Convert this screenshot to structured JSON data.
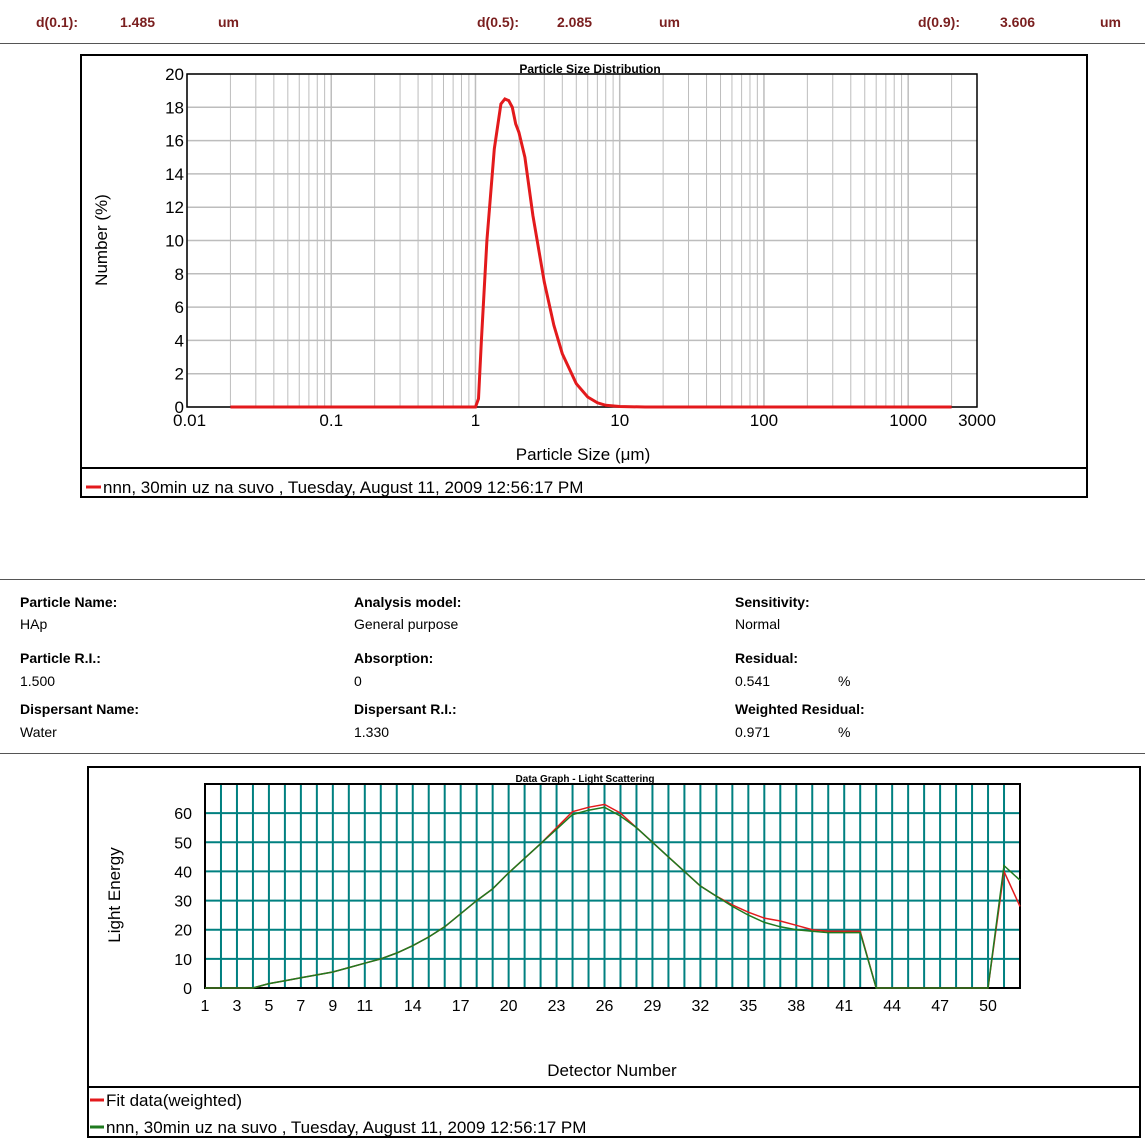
{
  "header": {
    "d10_label": "d(0.1):",
    "d10_value": "1.485",
    "d10_unit": "um",
    "d50_label": "d(0.5):",
    "d50_value": "2.085",
    "d50_unit": "um",
    "d90_label": "d(0.9):",
    "d90_value": "3.606",
    "d90_unit": "um"
  },
  "info": {
    "particle_name_label": "Particle Name:",
    "particle_name": "HAp",
    "analysis_model_label": "Analysis model:",
    "analysis_model": "General purpose",
    "sensitivity_label": "Sensitivity:",
    "sensitivity": "Normal",
    "particle_ri_label": "Particle R.I.:",
    "particle_ri": "1.500",
    "absorption_label": "Absorption:",
    "absorption": "0",
    "residual_label": "Residual:",
    "residual": "0.541",
    "residual_unit": "%",
    "dispersant_name_label": "Dispersant Name:",
    "dispersant_name": "Water",
    "dispersant_ri_label": "Dispersant R.I.:",
    "dispersant_ri": "1.330",
    "weighted_residual_label": "Weighted Residual:",
    "weighted_residual": "0.971",
    "weighted_residual_unit": "%"
  },
  "colors": {
    "red": "#e31a1c",
    "green": "#1f7a1f",
    "teal": "#008080",
    "grid_gray": "#bdbdbd",
    "header_text": "#7a1f1f"
  },
  "chart_data": [
    {
      "type": "line",
      "title": "Particle Size Distribution",
      "xlabel": "Particle Size (μm)",
      "ylabel": "Number (%)",
      "x_scale": "log",
      "xlim": [
        0.01,
        3000
      ],
      "ylim": [
        0,
        20
      ],
      "x_tick_labels": [
        "0.01",
        "0.1",
        "1",
        "10",
        "100",
        "1000",
        "3000"
      ],
      "x_ticks": [
        0.01,
        0.1,
        1,
        10,
        100,
        1000,
        3000
      ],
      "y_ticks": [
        0,
        2,
        4,
        6,
        8,
        10,
        12,
        14,
        16,
        18,
        20
      ],
      "grid": true,
      "legend": "bottom",
      "series": [
        {
          "name": "nnn, 30min uz na suvo , Tuesday, August 11, 2009 12:56:17 PM",
          "color": "#e31a1c",
          "x": [
            0.02,
            0.05,
            0.2,
            0.5,
            1.0,
            1.05,
            1.1,
            1.2,
            1.35,
            1.5,
            1.6,
            1.7,
            1.8,
            1.9,
            2.0,
            2.2,
            2.5,
            3.0,
            3.5,
            4.0,
            5.0,
            6.0,
            7.0,
            8.0,
            10.0,
            15.0,
            30.0,
            100.0,
            1000.0,
            2000.0
          ],
          "y": [
            0,
            0,
            0,
            0,
            0,
            0.5,
            4.0,
            10.0,
            15.5,
            18.2,
            18.5,
            18.4,
            18.0,
            17.0,
            16.5,
            15.0,
            11.5,
            7.5,
            4.9,
            3.2,
            1.4,
            0.6,
            0.25,
            0.1,
            0.03,
            0,
            0,
            0,
            0,
            0
          ]
        }
      ]
    },
    {
      "type": "line",
      "title": "Data Graph - Light Scattering",
      "xlabel": "Detector Number",
      "ylabel": "Light Energy",
      "xlim": [
        1,
        52
      ],
      "ylim": [
        0,
        70
      ],
      "x_tick_labels": [
        "1",
        "3",
        "5",
        "7",
        "9",
        "11",
        "14",
        "17",
        "20",
        "23",
        "26",
        "29",
        "32",
        "35",
        "38",
        "41",
        "44",
        "47",
        "50"
      ],
      "y_ticks": [
        0,
        10,
        20,
        30,
        40,
        50,
        60
      ],
      "grid": true,
      "legend": "bottom",
      "series": [
        {
          "name": "Fit data(weighted)",
          "color": "#e31a1c",
          "x": [
            1,
            2,
            3,
            4,
            5,
            6,
            7,
            8,
            9,
            10,
            11,
            12,
            13,
            14,
            15,
            16,
            17,
            18,
            19,
            20,
            21,
            22,
            23,
            24,
            25,
            26,
            27,
            28,
            29,
            30,
            31,
            32,
            33,
            34,
            35,
            36,
            37,
            38,
            39,
            40,
            41,
            42,
            43,
            44,
            45,
            46,
            47,
            48,
            49,
            50,
            51,
            52
          ],
          "y": [
            0,
            0,
            0,
            0,
            1.5,
            2.5,
            3.5,
            4.5,
            5.5,
            7,
            8.5,
            10,
            12,
            14.5,
            17.5,
            21,
            25.5,
            30,
            34,
            39.5,
            44.5,
            49.5,
            55,
            60.5,
            62,
            63,
            60,
            55,
            50,
            45,
            40,
            35,
            31.5,
            28.5,
            26,
            24,
            23,
            21.5,
            20,
            19.5,
            19.5,
            19.5,
            0,
            0,
            0,
            0,
            0,
            0,
            0,
            0,
            40,
            28
          ]
        },
        {
          "name": "nnn, 30min uz na suvo , Tuesday, August 11, 2009 12:56:17 PM",
          "color": "#1f7a1f",
          "x": [
            1,
            2,
            3,
            4,
            5,
            6,
            7,
            8,
            9,
            10,
            11,
            12,
            13,
            14,
            15,
            16,
            17,
            18,
            19,
            20,
            21,
            22,
            23,
            24,
            25,
            26,
            27,
            28,
            29,
            30,
            31,
            32,
            33,
            34,
            35,
            36,
            37,
            38,
            39,
            40,
            41,
            42,
            43,
            44,
            45,
            46,
            47,
            48,
            49,
            50,
            51,
            52
          ],
          "y": [
            0,
            0,
            0,
            0,
            1.5,
            2.5,
            3.5,
            4.5,
            5.5,
            7,
            8.5,
            10,
            12,
            14.5,
            17.5,
            21,
            25.5,
            30,
            34,
            39.5,
            44.5,
            49.5,
            54.5,
            59.5,
            61,
            62,
            59,
            55,
            50,
            45,
            40,
            35,
            31.5,
            28,
            25,
            22.5,
            21,
            20,
            19.5,
            19,
            19,
            19,
            0,
            0,
            0,
            0,
            0,
            0,
            0,
            0,
            42,
            37
          ]
        }
      ]
    }
  ]
}
